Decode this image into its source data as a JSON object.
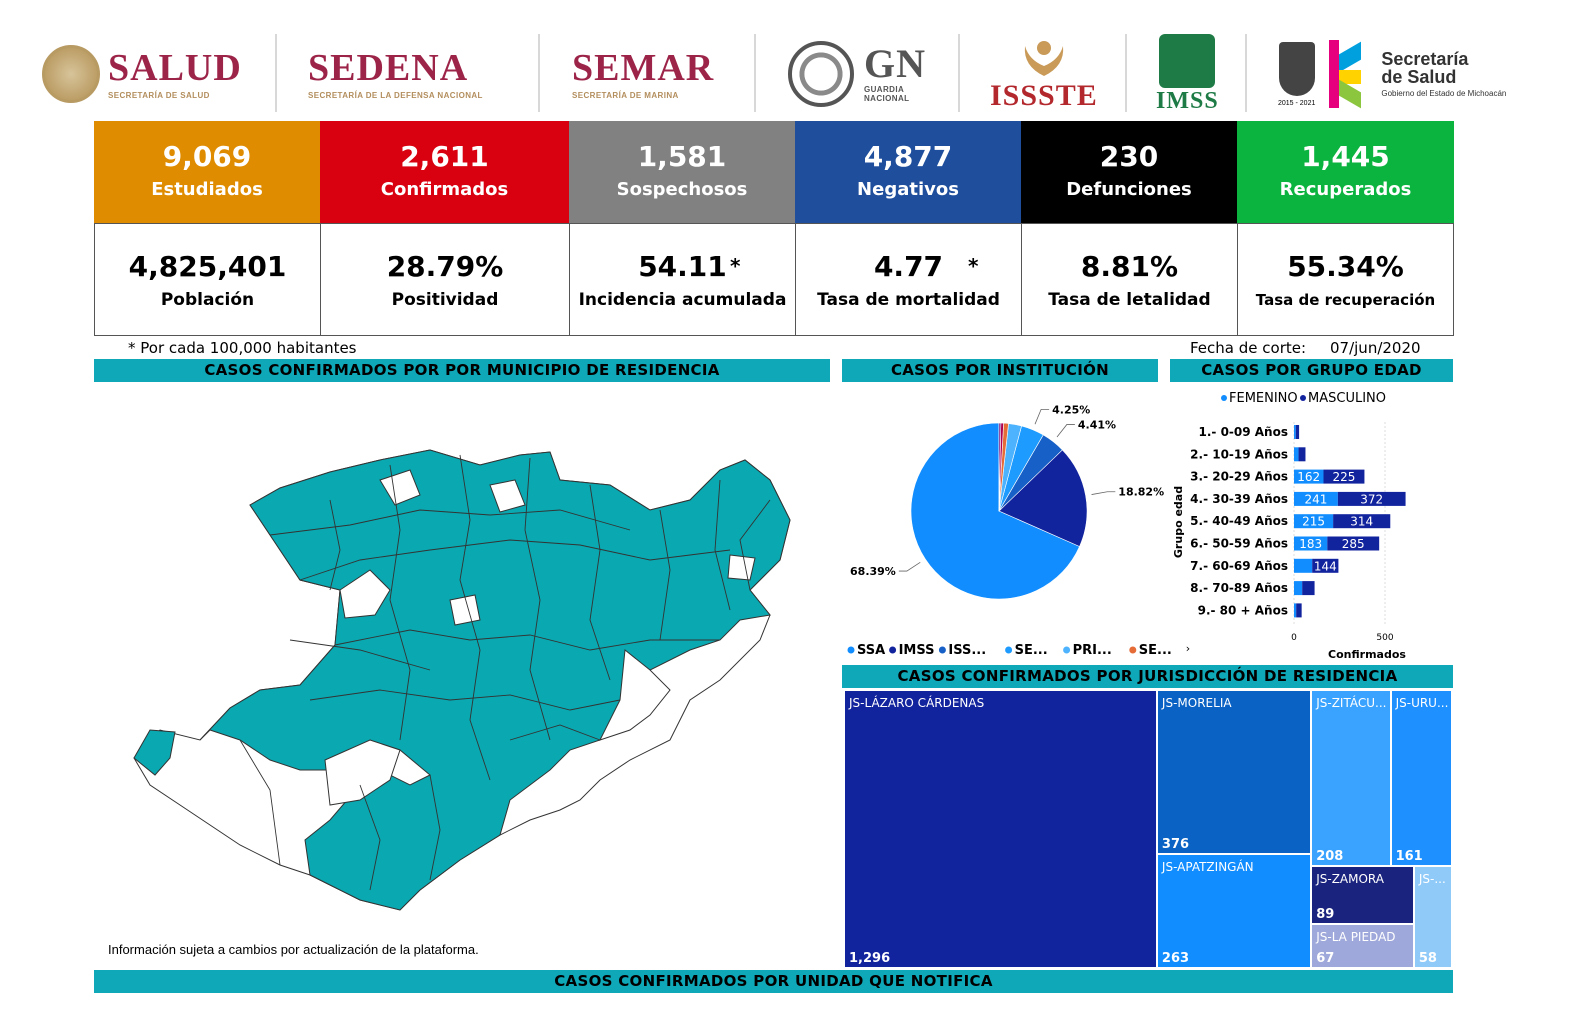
{
  "logos": {
    "salud": {
      "name": "SALUD",
      "sub": "SECRETARÍA DE SALUD",
      "color": "#9d2449"
    },
    "sedena": {
      "name": "SEDENA",
      "sub": "SECRETARÍA DE LA DEFENSA NACIONAL",
      "color": "#9d2449"
    },
    "semar": {
      "name": "SEMAR",
      "sub": "SECRETARÍA DE MARINA",
      "color": "#9d2449"
    },
    "gn": {
      "name": "GN",
      "sub1": "GUARDIA",
      "sub2": "NACIONAL"
    },
    "issste": {
      "name": "ISSSTE",
      "color": "#b3282d"
    },
    "imss": {
      "name": "IMSS",
      "color": "#1e7b46"
    },
    "michoacan": {
      "years": "2015 - 2021",
      "line1": "Secretaría",
      "line2": "de Salud",
      "line3": "Gobierno del Estado de Michoacán"
    }
  },
  "kpis": [
    {
      "value": "9,069",
      "label": "Estudiados",
      "color": "#df8c00"
    },
    {
      "value": "2,611",
      "label": "Confirmados",
      "color": "#d9000f"
    },
    {
      "value": "1,581",
      "label": "Sospechosos",
      "color": "#818181"
    },
    {
      "value": "4,877",
      "label": "Negativos",
      "color": "#1e4e9c"
    },
    {
      "value": "230",
      "label": "Defunciones",
      "color": "#000000"
    },
    {
      "value": "1,445",
      "label": "Recuperados",
      "color": "#0bb33f"
    }
  ],
  "stats": [
    {
      "value": "4,825,401",
      "label": "Población",
      "star": ""
    },
    {
      "value": "28.79%",
      "label": "Positividad",
      "star": ""
    },
    {
      "value": "54.11",
      "label": "Incidencia acumulada",
      "star": "*"
    },
    {
      "value": "4.77",
      "label": "Tasa de mortalidad",
      "star": "*"
    },
    {
      "value": "8.81%",
      "label": "Tasa de letalidad",
      "star": ""
    },
    {
      "value": "55.34%",
      "label": "Tasa de recuperación",
      "star": ""
    }
  ],
  "notes": {
    "per_100k": "* Por cada 100,000 habitantes",
    "cutoff_label": "Fecha de corte:",
    "cutoff_date": "07/jun/2020",
    "disclaimer": "Información sujeta a cambios por actualización de la plataforma."
  },
  "banners": {
    "municipio": "CASOS CONFIRMADOS POR POR MUNICIPIO DE RESIDENCIA",
    "institucion": "CASOS POR INSTITUCIÓN",
    "edad": "CASOS POR GRUPO EDAD",
    "jurisdiccion": "CASOS CONFIRMADOS POR JURISDICCIÓN DE RESIDENCIA",
    "unidad": "CASOS CONFIRMADOS POR UNIDAD QUE NOTIFICA"
  },
  "colors": {
    "banner": "#0fa8b8",
    "map_fill": "#0aa8b0"
  },
  "chart_data": [
    {
      "type": "pie",
      "title": "CASOS POR INSTITUCIÓN",
      "slices": [
        {
          "label": "SSA",
          "value": 68.39,
          "pct_label": "68.39%",
          "color": "#118dff"
        },
        {
          "label": "IMSS",
          "value": 18.82,
          "pct_label": "18.82%",
          "color": "#12239e"
        },
        {
          "label": "ISS...",
          "value": 4.41,
          "pct_label": "4.41%",
          "color": "#1660c7"
        },
        {
          "label": "SE...",
          "value": 4.25,
          "pct_label": "4.25%",
          "color": "#1e9bff"
        },
        {
          "label": "PRI...",
          "value": 2.4,
          "pct_label": "",
          "color": "#4eb3ff"
        },
        {
          "label": "SE...",
          "value": 0.9,
          "pct_label": "",
          "color": "#e66c37"
        },
        {
          "label": "",
          "value": 0.5,
          "pct_label": "",
          "color": "#b00050"
        },
        {
          "label": "",
          "value": 0.33,
          "pct_label": "",
          "color": "#6b007b"
        }
      ],
      "legend_more": "›"
    },
    {
      "type": "bar",
      "title": "CASOS POR GRUPO EDAD",
      "orientation": "horizontal",
      "stacked": true,
      "categories": [
        "1.- 0-09 Años",
        "2.- 10-19 Años",
        "3.- 20-29 Años",
        "4.- 30-39 Años",
        "5.- 40-49 Años",
        "6.- 50-59 Años",
        "7.- 60-69 Años",
        "8.- 70-89 Años",
        "9.- 80 + Años"
      ],
      "series": [
        {
          "name": "FEMENINO",
          "color": "#118dff",
          "values": [
            10,
            25,
            162,
            241,
            215,
            183,
            100,
            45,
            12
          ],
          "labels": [
            "",
            "",
            "162",
            "241",
            "215",
            "183",
            "",
            "",
            ""
          ]
        },
        {
          "name": "MASCULINO",
          "color": "#12239e",
          "values": [
            18,
            38,
            225,
            372,
            314,
            285,
            144,
            68,
            30
          ],
          "labels": [
            "",
            "",
            "225",
            "372",
            "314",
            "285",
            "144",
            "",
            ""
          ]
        }
      ],
      "xlabel": "Confirmados",
      "ylabel": "Grupo edad",
      "xticks": [
        "0",
        "500"
      ],
      "xlim": [
        0,
        600
      ]
    },
    {
      "type": "treemap",
      "title": "CASOS CONFIRMADOS POR JURISDICCIÓN DE RESIDENCIA",
      "items": [
        {
          "name": "JS-LÁZARO CÁRDENAS",
          "value": 1296,
          "label": "1,296",
          "color": "#12239e"
        },
        {
          "name": "JS-MORELIA",
          "value": 376,
          "label": "376",
          "color": "#0a62c4"
        },
        {
          "name": "JS-APATZINGÁN",
          "value": 263,
          "label": "263",
          "color": "#118dff"
        },
        {
          "name": "JS-ZITÁCU...",
          "value": 208,
          "label": "208",
          "color": "#3aa3ff"
        },
        {
          "name": "JS-URU...",
          "value": 161,
          "label": "161",
          "color": "#1e90ff"
        },
        {
          "name": "JS-ZAMORA",
          "value": 89,
          "label": "89",
          "color": "#1a237e"
        },
        {
          "name": "JS-LA PIEDAD",
          "value": 67,
          "label": "67",
          "color": "#9fa8da"
        },
        {
          "name": "JS-...",
          "value": 58,
          "label": "58",
          "color": "#90caf9"
        }
      ]
    }
  ]
}
